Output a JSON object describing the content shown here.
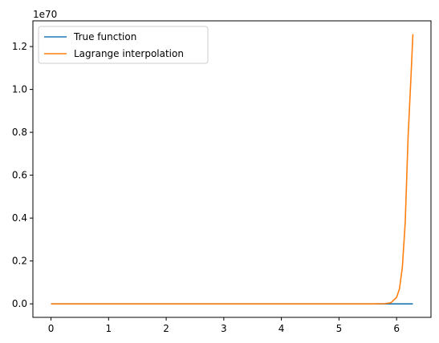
{
  "chart_data": {
    "type": "line",
    "title": "",
    "xlabel": "",
    "ylabel": "",
    "y_offset_label": "1e70",
    "y_scale": 1e+70,
    "xlim": [
      -0.314,
      6.597
    ],
    "ylim": [
      -6.3e+68,
      1.32e+70
    ],
    "x_ticks": [
      0,
      1,
      2,
      3,
      4,
      5,
      6
    ],
    "x_tick_labels": [
      "0",
      "1",
      "2",
      "3",
      "4",
      "5",
      "6"
    ],
    "y_ticks": [
      0,
      2e+69,
      4e+69,
      6e+69,
      8e+69,
      1e+70,
      1.2e+70
    ],
    "y_tick_labels": [
      "0.0",
      "0.2",
      "0.4",
      "0.6",
      "0.8",
      "1.0",
      "1.2"
    ],
    "grid": false,
    "legend_position": "top-left",
    "series": [
      {
        "name": "True function",
        "color": "#1f77b4",
        "x": [
          0,
          1,
          2,
          3,
          4,
          5,
          6,
          6.2832
        ],
        "y": [
          0,
          0,
          0,
          0,
          0,
          0,
          0,
          0
        ]
      },
      {
        "name": "Lagrange interpolation",
        "color": "#ff7f0e",
        "x": [
          0,
          1,
          2,
          3,
          4,
          5,
          5.6,
          5.8,
          5.9,
          6.0,
          6.05,
          6.1,
          6.15,
          6.2,
          6.25,
          6.2832
        ],
        "y": [
          0,
          0,
          0,
          0,
          0,
          0,
          0,
          1e+67,
          5e+67,
          3e+68,
          7e+68,
          1.7e+69,
          3.8e+69,
          7.8e+69,
          1.06e+70,
          1.258e+70
        ]
      }
    ]
  }
}
